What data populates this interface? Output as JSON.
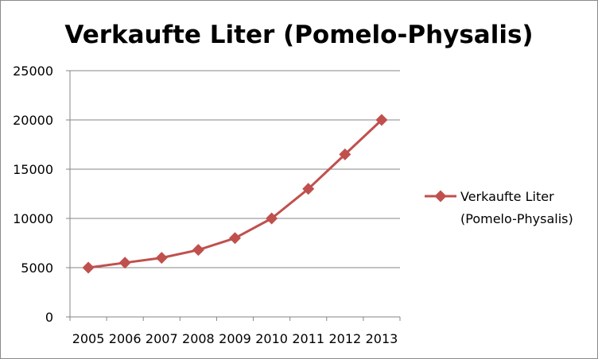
{
  "chart_data": {
    "type": "line",
    "title": "Verkaufte Liter (Pomelo-Physalis)",
    "xlabel": "",
    "ylabel": "",
    "x": [
      "2005",
      "2006",
      "2007",
      "2008",
      "2009",
      "2010",
      "2011",
      "2012",
      "2013"
    ],
    "series": [
      {
        "name": "Verkaufte Liter (Pomelo-Physalis)",
        "legend_lines": [
          "Verkaufte Liter",
          "(Pomelo-Physalis)"
        ],
        "values": [
          5000,
          5500,
          6000,
          6800,
          8000,
          10000,
          13000,
          16500,
          20000
        ],
        "color": "#c0504d",
        "marker": "diamond"
      }
    ],
    "ylim": [
      0,
      25000
    ],
    "yticks": [
      "0",
      "5000",
      "10000",
      "15000",
      "20000",
      "25000"
    ],
    "grid": true,
    "legend_position": "right"
  }
}
